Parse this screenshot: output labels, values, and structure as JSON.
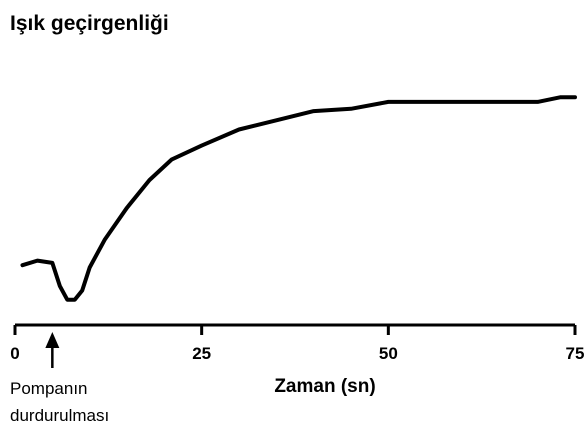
{
  "chart_data": {
    "type": "line",
    "title": "Işık geçirgenliği",
    "x_label": "Zaman (sn)",
    "x": [
      1,
      3,
      5,
      6,
      7,
      8,
      9,
      10,
      12,
      15,
      18,
      21,
      25,
      30,
      35,
      40,
      45,
      50,
      55,
      60,
      65,
      70,
      73,
      75
    ],
    "series": [
      {
        "name": "Işık geçirgenliği",
        "color": "#000000",
        "values": [
          26,
          28,
          27,
          17,
          11,
          11,
          15,
          25,
          37,
          51,
          63,
          72,
          78,
          85,
          89,
          93,
          94,
          97,
          97,
          97,
          97,
          97,
          99,
          99
        ]
      }
    ],
    "xlim": [
      0,
      75
    ],
    "xticks": [
      0,
      25,
      50,
      75
    ],
    "ylim": [
      0,
      100
    ],
    "annotation": {
      "text": [
        "Pompanın",
        "durdurulması"
      ],
      "x": 5
    }
  }
}
